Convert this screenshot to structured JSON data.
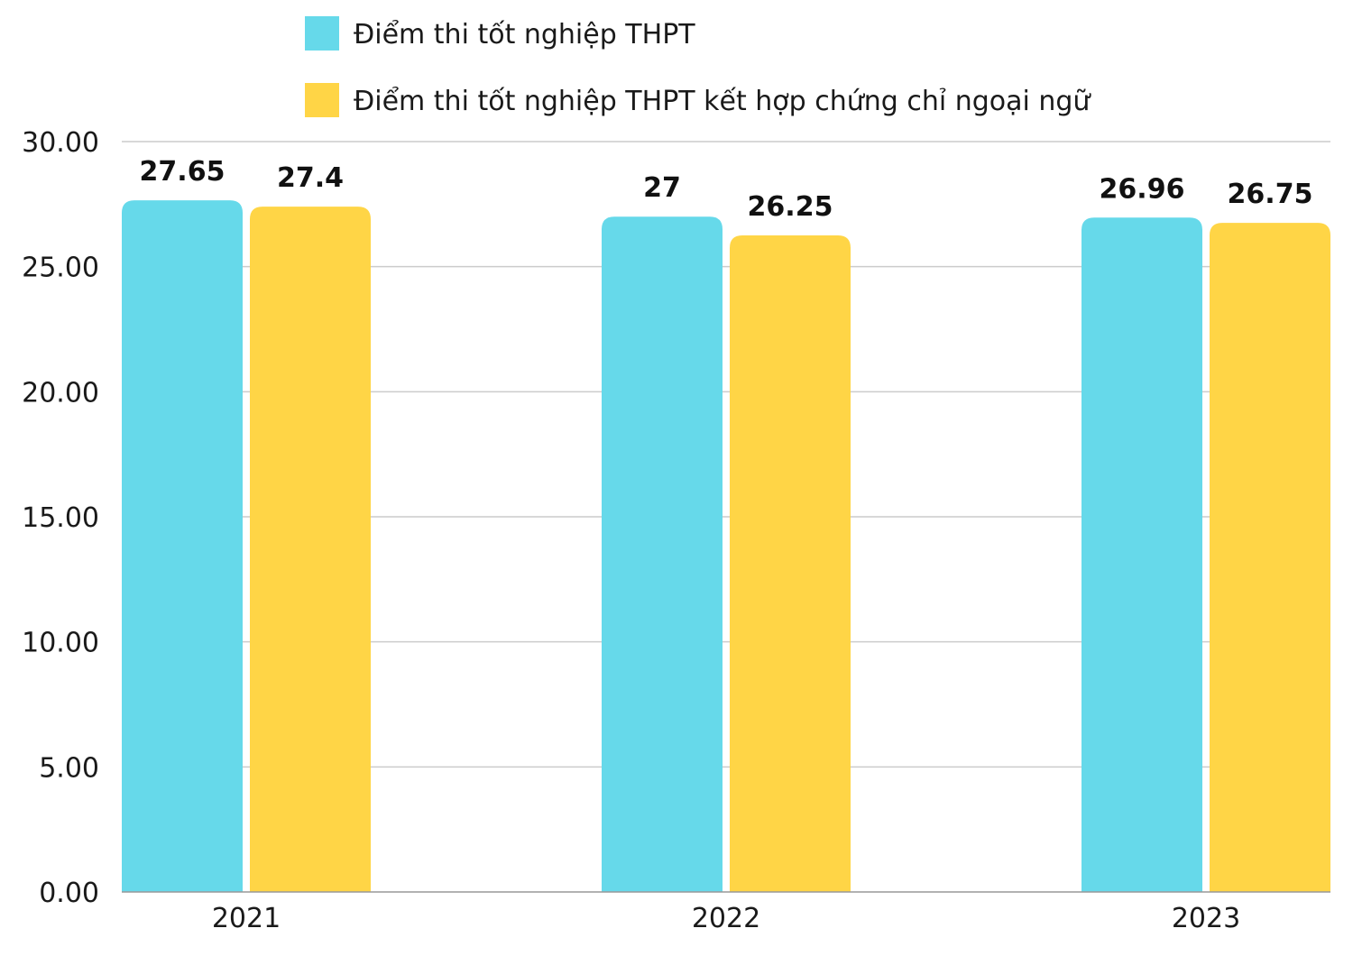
{
  "chart_data": {
    "type": "bar",
    "categories": [
      "2021",
      "2022",
      "2023"
    ],
    "series": [
      {
        "name": "Điểm thi tốt nghiệp THPT",
        "values": [
          27.65,
          27,
          26.96
        ],
        "labels": [
          "27.65",
          "27",
          "26.96"
        ],
        "color": "#66d9ea"
      },
      {
        "name": "Điểm thi tốt nghiệp THPT kết hợp chứng chỉ ngoại ngữ",
        "values": [
          27.4,
          26.25,
          26.75
        ],
        "labels": [
          "27.4",
          "26.25",
          "26.75"
        ],
        "color": "#ffd546"
      }
    ],
    "ylim": [
      0,
      30
    ],
    "yticks": [
      "0.00",
      "5.00",
      "10.00",
      "15.00",
      "20.00",
      "25.00",
      "30.00"
    ],
    "grid": true,
    "legend_position": "top",
    "gridline_color": "#cccccc",
    "axis_color": "#999999"
  }
}
